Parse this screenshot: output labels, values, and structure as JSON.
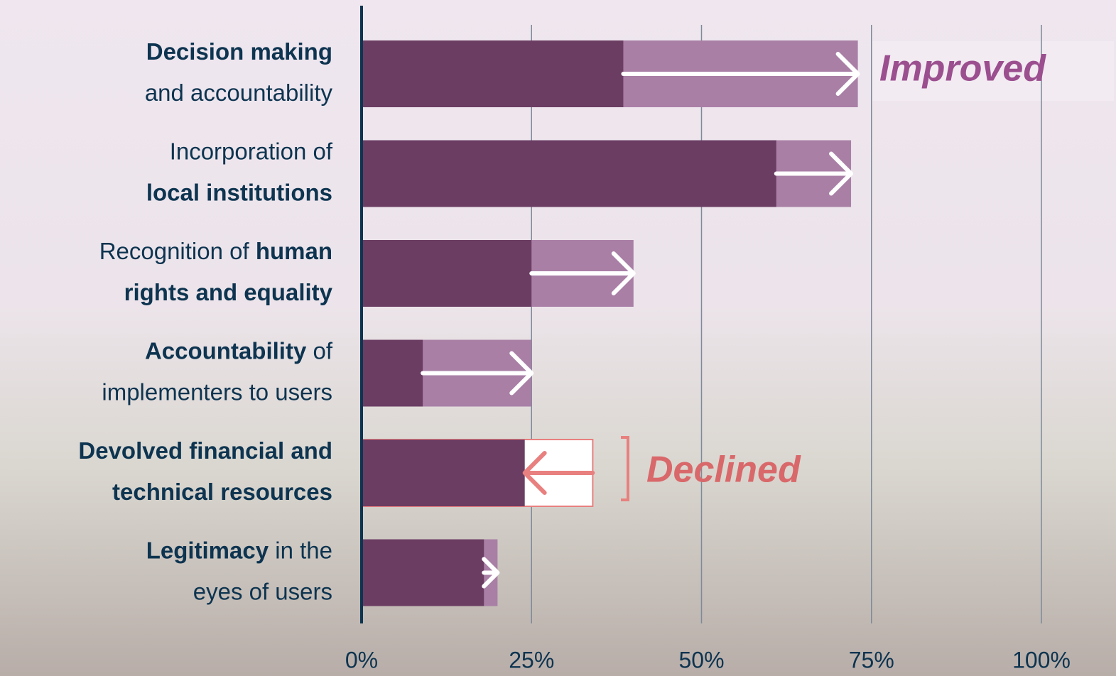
{
  "chart_data": {
    "type": "range_bar",
    "categories": [
      [
        [
          {
            "text": "Decision making",
            "bold": true
          }
        ],
        [
          {
            "text": "and accountability",
            "bold": false
          }
        ]
      ],
      [
        [
          {
            "text": "Incorporation of",
            "bold": false
          }
        ],
        [
          {
            "text": "local institutions",
            "bold": true
          }
        ]
      ],
      [
        [
          {
            "text": "Recognition of ",
            "bold": false
          },
          {
            "text": "human",
            "bold": true
          }
        ],
        [
          {
            "text": "rights and equality",
            "bold": true
          }
        ]
      ],
      [
        [
          {
            "text": "Accountability",
            "bold": true
          },
          {
            "text": " of",
            "bold": false
          }
        ],
        [
          {
            "text": "implementers to users",
            "bold": false
          }
        ]
      ],
      [
        [
          {
            "text": "Devolved financial and",
            "bold": true
          }
        ],
        [
          {
            "text": "technical resources",
            "bold": true
          }
        ]
      ],
      [
        [
          {
            "text": "Legitimacy",
            "bold": true
          },
          {
            "text": " in the",
            "bold": false
          }
        ],
        [
          {
            "text": "eyes of users",
            "bold": false
          }
        ]
      ]
    ],
    "series": [
      {
        "values": [
          38.5,
          61,
          25,
          9,
          34,
          18
        ]
      },
      {
        "values": [
          73,
          72,
          40,
          25,
          24,
          20
        ]
      }
    ],
    "colors": {
      "base": "#6b3d63",
      "improved": "#a97fa6",
      "declined": "#e8807f"
    },
    "xlim": [
      0,
      100
    ],
    "xticks": [
      {
        "value": 0,
        "label": "0%"
      },
      {
        "value": 25,
        "label": "25%"
      },
      {
        "value": 50,
        "label": "50%"
      },
      {
        "value": 75,
        "label": "75%"
      },
      {
        "value": 100,
        "label": "100%"
      }
    ],
    "grid": true,
    "annotations": [
      {
        "text": "Improved"
      },
      {
        "text": "Declined"
      }
    ]
  }
}
